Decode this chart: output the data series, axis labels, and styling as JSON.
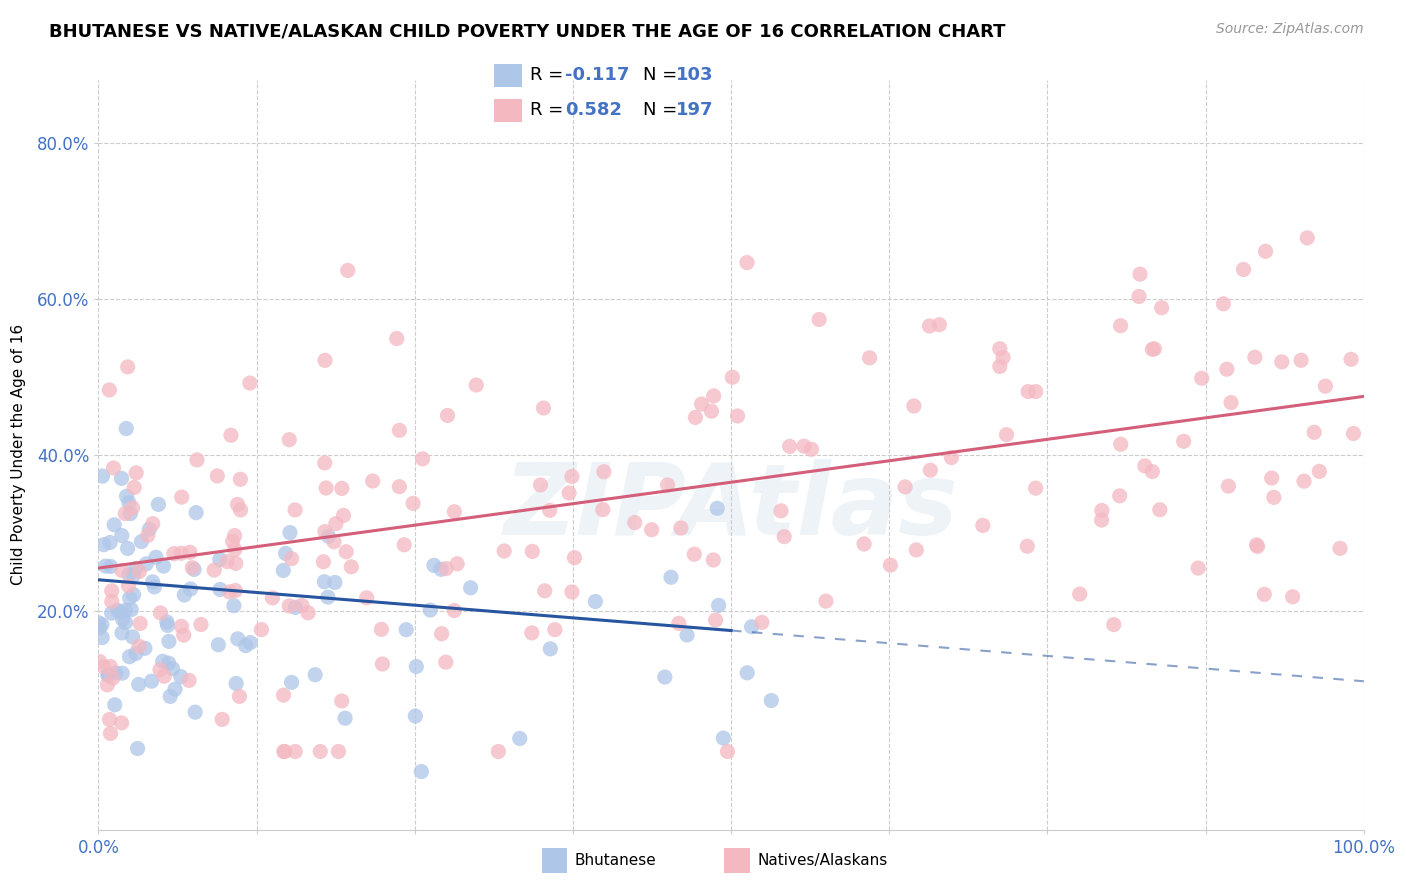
{
  "title": "BHUTANESE VS NATIVE/ALASKAN CHILD POVERTY UNDER THE AGE OF 16 CORRELATION CHART",
  "source": "Source: ZipAtlas.com",
  "ylabel": "Child Poverty Under the Age of 16",
  "legend_label1": "Bhutanese",
  "legend_label2": "Natives/Alaskans",
  "r1_label": "R = ",
  "r1_val": "-0.117",
  "n1_label": "N = ",
  "n1_val": "103",
  "r2_val": "0.582",
  "n2_val": "197",
  "bhutanese_color": "#aec6e8",
  "native_color": "#f4b8c1",
  "bhutanese_line_color": "#2855a0",
  "native_line_color": "#d45f7a",
  "r_n_color": "#4472c4",
  "watermark_color": "#c8d8ea",
  "watermark_text": "ZIPAtlas",
  "xlim": [
    0,
    100
  ],
  "ylim": [
    -8,
    88
  ],
  "ytick_vals": [
    20,
    40,
    60,
    80
  ],
  "ytick_labels": [
    "20.0%",
    "40.0%",
    "60.0%",
    "80.0%"
  ],
  "xtick_left": "0.0%",
  "xtick_right": "100.0%",
  "title_fontsize": 13,
  "source_fontsize": 10,
  "tick_fontsize": 12,
  "legend_fontsize": 13,
  "scatter_size": 120,
  "scatter_alpha": 0.75,
  "bhutanese_N": 103,
  "native_N": 197,
  "bhutanese_R": -0.117,
  "native_R": 0.582,
  "line_width": 2.2,
  "dashed_line_alpha": 0.55
}
